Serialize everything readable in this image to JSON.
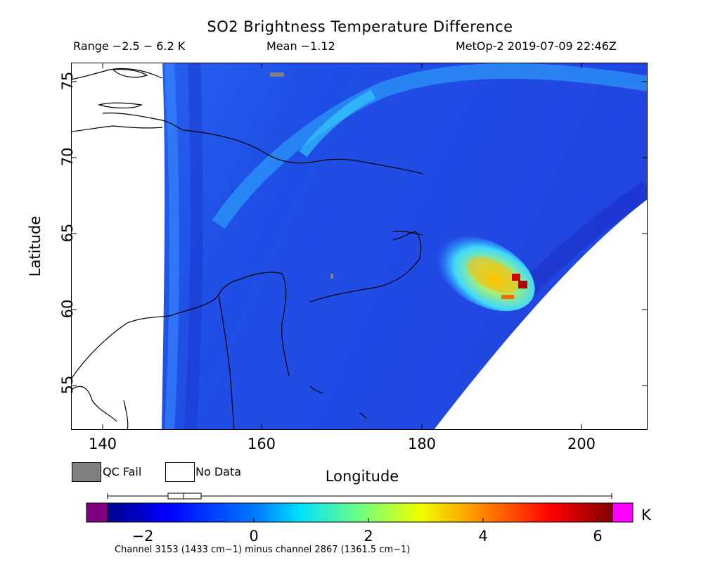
{
  "header": {
    "title": "SO2 Brightness Temperature Difference",
    "range_text": "Range −2.5 − 6.2 K",
    "mean_text": "Mean −1.12",
    "satellite_text": "MetOp-2 2019-07-09 22:46Z"
  },
  "map": {
    "xlabel": "Longitude",
    "ylabel": "Latitude",
    "x_ticks": [
      "140",
      "160",
      "180",
      "200"
    ],
    "y_ticks": [
      "55",
      "60",
      "65",
      "70",
      "75"
    ],
    "lon_range": [
      136,
      208
    ],
    "lat_range": [
      52,
      76
    ],
    "field_colors": {
      "background_blue": "#1f4fe6",
      "deep_blue": "#1a2fd4",
      "cyan_arc": "#2fb8ff",
      "hotspot_red": "#d40000"
    }
  },
  "legend": {
    "qc_fail_label": "QC Fail",
    "no_data_label": "No Data",
    "qc_fail_color": "#808080",
    "no_data_color": "#ffffff"
  },
  "colorbar": {
    "ticks": [
      "−2",
      "0",
      "2",
      "4",
      "6"
    ],
    "tick_values": [
      -2,
      0,
      2,
      4,
      6
    ],
    "unit": "K",
    "vmin": -2.5,
    "vmax": 6.3,
    "under_color": "#800080",
    "over_color": "#ff00ff",
    "boxplot": {
      "whisker_low": -2.5,
      "q1": -1.5,
      "median": -1.2,
      "q3": -0.9,
      "whisker_high": 6.2
    },
    "note": "Channel 3153 (1433 cm−1) minus channel 2867 (1361.5 cm−1)"
  }
}
